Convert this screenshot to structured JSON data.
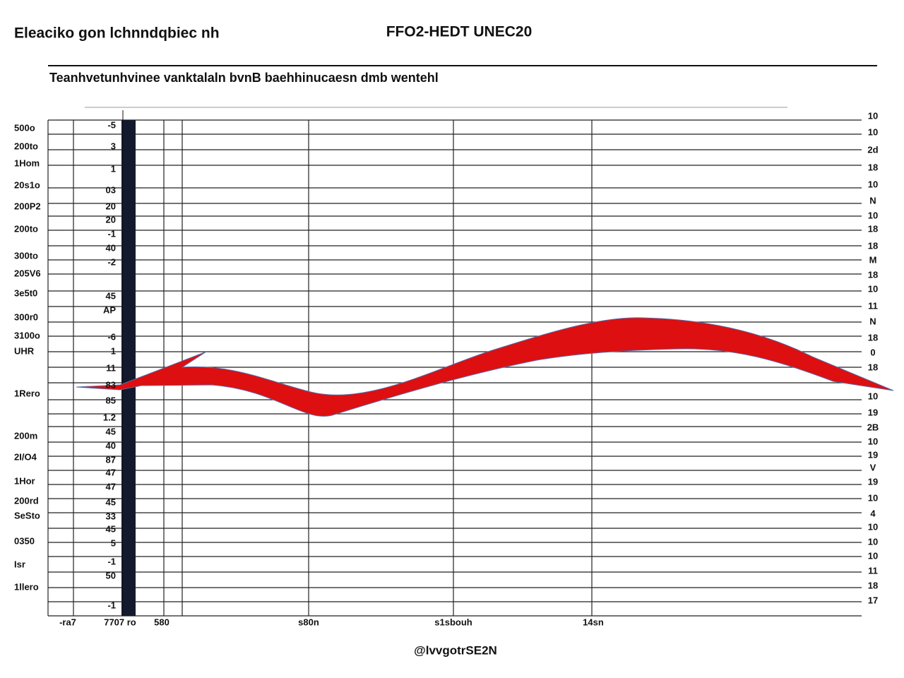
{
  "header": {
    "left": "Eleaciko gon lchnndqbiec nh",
    "center": "FFO2-HEDT UNEC20"
  },
  "subtitle": "Teanhvetunhvinee vanktalaln bvnB baehhinucaesn dmb wentehl",
  "left_labels": [
    "500o",
    "200to",
    "1Hom",
    "20s1o",
    "200P2",
    "200to",
    "300to",
    "205V6",
    "3e5t0",
    "300r0",
    "3100o",
    "UHR",
    "1Rero",
    "200m",
    "2I/O4",
    "1Hor",
    "200rd",
    "SeSto",
    "0350",
    "Isr",
    "1llero"
  ],
  "inner_labels": [
    "-5",
    "3",
    "1",
    "03",
    "20",
    "20",
    "-1",
    "40",
    "-2",
    "45",
    "AP",
    "-6",
    "1",
    "11",
    "83",
    "85",
    "1.2",
    "45",
    "40",
    "87",
    "47",
    "47",
    "45",
    "33",
    "45",
    "5",
    "-1",
    "50",
    "-1"
  ],
  "right_labels": [
    "10",
    "10",
    "2d",
    "18",
    "10",
    "N",
    "10",
    "18",
    "18",
    "M",
    "18",
    "10",
    "11",
    "N",
    "18",
    "0",
    "18",
    "10",
    "19",
    "2B",
    "10",
    "19",
    "V",
    "19",
    "10",
    "4",
    "10",
    "10",
    "10",
    "11",
    "18",
    "17"
  ],
  "x_labels": [
    "-ra7",
    "7707 ro",
    "580",
    "s80n",
    "s1sbouh",
    "14sn"
  ],
  "footer": "@lvvgotrSE2N"
}
